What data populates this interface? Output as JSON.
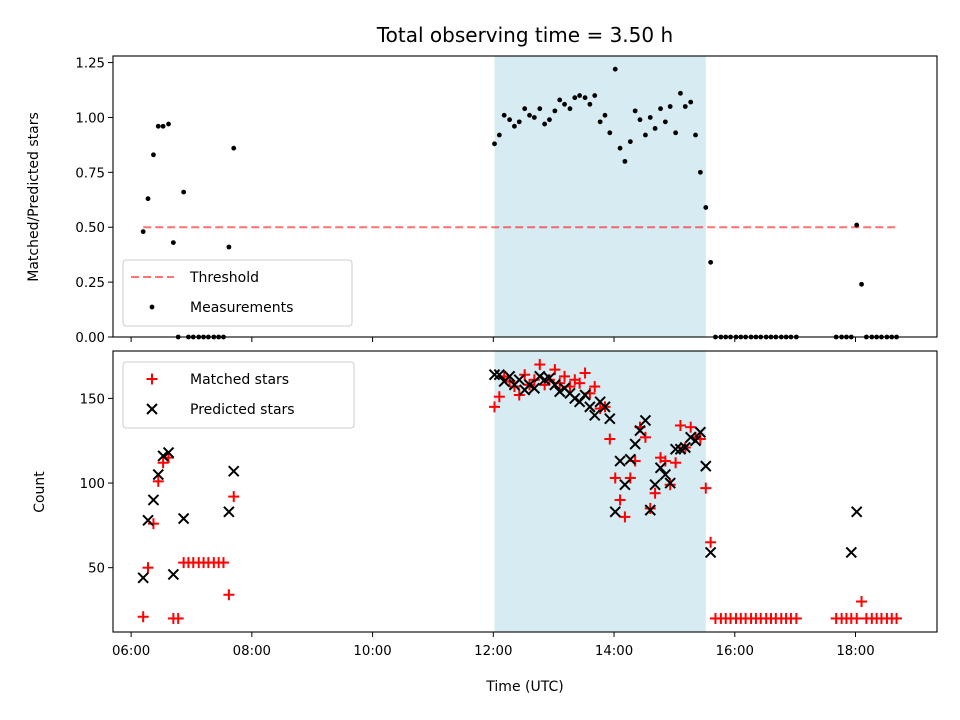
{
  "chart_data": [
    {
      "type": "scatter",
      "title": "Total observing time = 3.50 h",
      "xlabel": "",
      "ylabel": "Matched/Predicted stars",
      "xlim": [
        5.7,
        19.35
      ],
      "ylim": [
        0,
        1.28
      ],
      "yticks": [
        0.0,
        0.25,
        0.5,
        0.75,
        1.0,
        1.25
      ],
      "ytick_labels": [
        "0.00",
        "0.25",
        "0.50",
        "0.75",
        "1.00",
        "1.25"
      ],
      "xticks": [
        6,
        8,
        10,
        12,
        14,
        16,
        18
      ],
      "shaded_region": {
        "x_start": 12.02,
        "x_end": 15.52,
        "color": "#add8e6"
      },
      "threshold": {
        "name": "Threshold",
        "y": 0.5,
        "x_start": 6.2,
        "x_end": 18.7,
        "color": "#ff0000"
      },
      "legend_position": "lower left",
      "legend": [
        "Threshold",
        "Measurements"
      ],
      "series": [
        {
          "name": "Measurements",
          "marker": "dot",
          "color": "#000000",
          "x": [
            6.2,
            6.28,
            6.37,
            6.45,
            6.53,
            6.62,
            6.7,
            6.78,
            6.87,
            6.95,
            7.03,
            7.12,
            7.2,
            7.28,
            7.37,
            7.45,
            7.53,
            7.62,
            7.7,
            12.02,
            12.1,
            12.18,
            12.27,
            12.35,
            12.43,
            12.52,
            12.6,
            12.68,
            12.77,
            12.85,
            12.93,
            13.02,
            13.1,
            13.18,
            13.27,
            13.35,
            13.43,
            13.52,
            13.6,
            13.68,
            13.77,
            13.85,
            13.93,
            14.02,
            14.1,
            14.18,
            14.27,
            14.35,
            14.43,
            14.52,
            14.6,
            14.68,
            14.77,
            14.85,
            14.93,
            15.02,
            15.1,
            15.18,
            15.27,
            15.35,
            15.43,
            15.52,
            15.6,
            15.68,
            15.77,
            15.85,
            15.93,
            16.02,
            16.1,
            16.18,
            16.27,
            16.35,
            16.43,
            16.52,
            16.6,
            16.68,
            16.77,
            16.85,
            16.93,
            17.02,
            17.68,
            17.77,
            17.85,
            17.93,
            18.02,
            18.1,
            18.18,
            18.27,
            18.35,
            18.43,
            18.52,
            18.6,
            18.68
          ],
          "y": [
            0.48,
            0.63,
            0.83,
            0.96,
            0.96,
            0.97,
            0.43,
            0.0,
            0.66,
            0.0,
            0.0,
            0.0,
            0.0,
            0.0,
            0.0,
            0.0,
            0.0,
            0.41,
            0.86,
            0.88,
            0.92,
            1.01,
            0.99,
            0.96,
            0.98,
            1.04,
            1.01,
            1.0,
            1.04,
            0.97,
            0.99,
            1.03,
            1.08,
            1.06,
            1.04,
            1.09,
            1.1,
            1.09,
            1.06,
            1.1,
            0.98,
            1.01,
            0.93,
            1.22,
            0.86,
            0.8,
            0.89,
            1.03,
            0.99,
            0.92,
            1.0,
            0.95,
            1.04,
            0.98,
            1.05,
            0.93,
            1.11,
            1.05,
            1.07,
            0.92,
            0.75,
            0.59,
            0.34,
            0.0,
            0.0,
            0.0,
            0.0,
            0.0,
            0.0,
            0.0,
            0.0,
            0.0,
            0.0,
            0.0,
            0.0,
            0.0,
            0.0,
            0.0,
            0.0,
            0.0,
            0.0,
            0.0,
            0.0,
            0.0,
            0.51,
            0.24,
            0.0,
            0.0,
            0.0,
            0.0,
            0.0,
            0.0,
            0.0
          ]
        }
      ]
    },
    {
      "type": "scatter",
      "title": "",
      "xlabel": "Time (UTC)",
      "ylabel": "Count",
      "xlim": [
        5.7,
        19.35
      ],
      "ylim": [
        12,
        178
      ],
      "yticks": [
        50,
        100,
        150
      ],
      "ytick_labels": [
        "50",
        "100",
        "150"
      ],
      "xticks": [
        6,
        8,
        10,
        12,
        14,
        16,
        18
      ],
      "xtick_labels": [
        "06:00",
        "08:00",
        "10:00",
        "12:00",
        "14:00",
        "16:00",
        "18:00"
      ],
      "shaded_region": {
        "x_start": 12.02,
        "x_end": 15.52,
        "color": "#add8e6"
      },
      "legend_position": "upper left",
      "legend": [
        "Matched stars",
        "Predicted stars"
      ],
      "series": [
        {
          "name": "Matched stars",
          "marker": "plus",
          "color": "#ff0000",
          "x": [
            6.2,
            6.28,
            6.37,
            6.45,
            6.53,
            6.62,
            6.7,
            6.78,
            6.87,
            6.95,
            7.03,
            7.12,
            7.2,
            7.28,
            7.37,
            7.45,
            7.53,
            7.62,
            7.7,
            12.02,
            12.1,
            12.18,
            12.27,
            12.35,
            12.43,
            12.52,
            12.6,
            12.68,
            12.77,
            12.85,
            12.93,
            13.02,
            13.1,
            13.18,
            13.27,
            13.35,
            13.43,
            13.52,
            13.6,
            13.68,
            13.77,
            13.85,
            13.93,
            14.02,
            14.1,
            14.18,
            14.27,
            14.35,
            14.43,
            14.52,
            14.6,
            14.68,
            14.77,
            14.85,
            14.93,
            15.02,
            15.1,
            15.18,
            15.27,
            15.35,
            15.43,
            15.52,
            15.6,
            15.68,
            15.77,
            15.85,
            15.93,
            16.02,
            16.1,
            16.18,
            16.27,
            16.35,
            16.43,
            16.52,
            16.6,
            16.68,
            16.77,
            16.85,
            16.93,
            17.02,
            17.68,
            17.77,
            17.85,
            17.93,
            18.02,
            18.1,
            18.18,
            18.27,
            18.35,
            18.43,
            18.52,
            18.6,
            18.68
          ],
          "y": [
            21,
            50,
            76,
            101,
            112,
            115,
            20,
            20,
            53,
            53,
            53,
            53,
            53,
            53,
            53,
            53,
            53,
            34,
            92,
            145,
            151,
            163,
            160,
            157,
            152,
            164,
            158,
            161,
            170,
            158,
            161,
            167,
            159,
            163,
            157,
            161,
            159,
            165,
            153,
            157,
            144,
            145,
            126,
            103,
            90,
            80,
            103,
            113,
            133,
            127,
            85,
            94,
            115,
            113,
            99,
            112,
            134,
            121,
            133,
            127,
            126,
            97,
            65,
            20,
            20,
            20,
            20,
            20,
            20,
            20,
            20,
            20,
            20,
            20,
            20,
            20,
            20,
            20,
            20,
            20,
            20,
            20,
            20,
            20,
            20,
            30,
            20,
            20,
            20,
            20,
            20,
            20,
            20
          ]
        },
        {
          "name": "Predicted stars",
          "marker": "x",
          "color": "#000000",
          "x": [
            6.2,
            6.28,
            6.37,
            6.45,
            6.53,
            6.62,
            6.7,
            6.87,
            7.62,
            7.7,
            12.02,
            12.1,
            12.18,
            12.27,
            12.35,
            12.43,
            12.52,
            12.6,
            12.68,
            12.77,
            12.85,
            12.93,
            13.02,
            13.1,
            13.18,
            13.27,
            13.35,
            13.43,
            13.52,
            13.6,
            13.68,
            13.77,
            13.85,
            13.93,
            14.02,
            14.1,
            14.18,
            14.27,
            14.35,
            14.43,
            14.52,
            14.6,
            14.68,
            14.77,
            14.85,
            14.93,
            15.02,
            15.1,
            15.18,
            15.27,
            15.35,
            15.43,
            15.52,
            15.6,
            17.93,
            18.02
          ],
          "y": [
            44,
            78,
            90,
            105,
            116,
            118,
            46,
            79,
            83,
            107,
            164,
            164,
            160,
            163,
            158,
            161,
            155,
            158,
            156,
            163,
            161,
            162,
            158,
            154,
            156,
            153,
            150,
            148,
            152,
            145,
            140,
            148,
            145,
            138,
            83,
            113,
            99,
            114,
            123,
            131,
            137,
            84,
            99,
            109,
            105,
            100,
            120,
            120,
            121,
            127,
            125,
            130,
            110,
            59,
            59,
            83
          ]
        }
      ]
    }
  ]
}
